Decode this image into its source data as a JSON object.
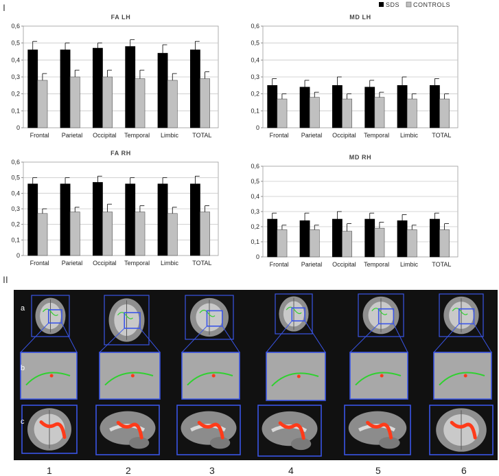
{
  "figure": {
    "part_one_label": "I",
    "part_two_label": "II"
  },
  "legend": {
    "items": [
      {
        "label": "SDS",
        "color": "#000000"
      },
      {
        "label": "CONTROLS",
        "color": "#c0c0c0"
      }
    ]
  },
  "chart_data": [
    {
      "type": "bar",
      "title": "FA LH",
      "categories": [
        "Frontal",
        "Parietal",
        "Occipital",
        "Temporal",
        "Limbic",
        "TOTAL"
      ],
      "ylim": [
        0,
        0.6
      ],
      "yticks": [
        "0",
        "0,1",
        "0,2",
        "0,3",
        "0,4",
        "0,5",
        "0,6"
      ],
      "grid": true,
      "series": [
        {
          "name": "SDS",
          "values": [
            0.46,
            0.46,
            0.47,
            0.48,
            0.44,
            0.46
          ],
          "errors": [
            0.05,
            0.04,
            0.03,
            0.04,
            0.05,
            0.05
          ]
        },
        {
          "name": "CONTROLS",
          "values": [
            0.28,
            0.3,
            0.3,
            0.29,
            0.28,
            0.29
          ],
          "errors": [
            0.04,
            0.04,
            0.04,
            0.05,
            0.04,
            0.04
          ]
        }
      ]
    },
    {
      "type": "bar",
      "title": "MD LH",
      "categories": [
        "Frontal",
        "Parietal",
        "Occipital",
        "Temporal",
        "Limbic",
        "TOTAL"
      ],
      "ylim": [
        0,
        0.6
      ],
      "yticks": [
        "0",
        "0,1",
        "0,2",
        "0,3",
        "0,4",
        "0,5",
        "0,6"
      ],
      "grid": true,
      "series": [
        {
          "name": "SDS",
          "values": [
            0.25,
            0.24,
            0.25,
            0.24,
            0.25,
            0.25
          ],
          "errors": [
            0.04,
            0.04,
            0.05,
            0.04,
            0.05,
            0.04
          ]
        },
        {
          "name": "CONTROLS",
          "values": [
            0.17,
            0.18,
            0.17,
            0.18,
            0.17,
            0.17
          ],
          "errors": [
            0.03,
            0.03,
            0.03,
            0.03,
            0.03,
            0.03
          ]
        }
      ]
    },
    {
      "type": "bar",
      "title": "FA RH",
      "categories": [
        "Frontal",
        "Parietal",
        "Occipital",
        "Temporal",
        "Limbic",
        "TOTAL"
      ],
      "ylim": [
        0,
        0.6
      ],
      "yticks": [
        "0",
        "0,1",
        "0,2",
        "0,3",
        "0,4",
        "0,5",
        "0,6"
      ],
      "grid": true,
      "series": [
        {
          "name": "SDS",
          "values": [
            0.46,
            0.46,
            0.47,
            0.46,
            0.46,
            0.46
          ],
          "errors": [
            0.04,
            0.04,
            0.04,
            0.04,
            0.04,
            0.05
          ]
        },
        {
          "name": "CONTROLS",
          "values": [
            0.27,
            0.28,
            0.28,
            0.28,
            0.27,
            0.28
          ],
          "errors": [
            0.03,
            0.03,
            0.05,
            0.04,
            0.04,
            0.04
          ]
        }
      ]
    },
    {
      "type": "bar",
      "title": "MD RH",
      "categories": [
        "Frontal",
        "Parietal",
        "Occipital",
        "Temporal",
        "Limbic",
        "TOTAL"
      ],
      "ylim": [
        0,
        0.6
      ],
      "yticks": [
        "0",
        "0,1",
        "0,2",
        "0,3",
        "0,4",
        "0,5",
        "0,6"
      ],
      "grid": true,
      "series": [
        {
          "name": "SDS",
          "values": [
            0.25,
            0.24,
            0.25,
            0.25,
            0.24,
            0.25
          ],
          "errors": [
            0.04,
            0.05,
            0.05,
            0.04,
            0.04,
            0.04
          ]
        },
        {
          "name": "CONTROLS",
          "values": [
            0.18,
            0.18,
            0.17,
            0.19,
            0.18,
            0.18
          ],
          "errors": [
            0.03,
            0.03,
            0.05,
            0.04,
            0.03,
            0.04
          ]
        }
      ]
    }
  ],
  "brain_panel": {
    "row_labels": [
      "a",
      "b",
      "c"
    ],
    "column_labels": [
      "1",
      "2",
      "3",
      "4",
      "5",
      "6"
    ],
    "background_color": "#111111",
    "box_color": "#3a55e8",
    "tract_color": "#2fd12f",
    "cluster_color": "#ff3b1a"
  }
}
